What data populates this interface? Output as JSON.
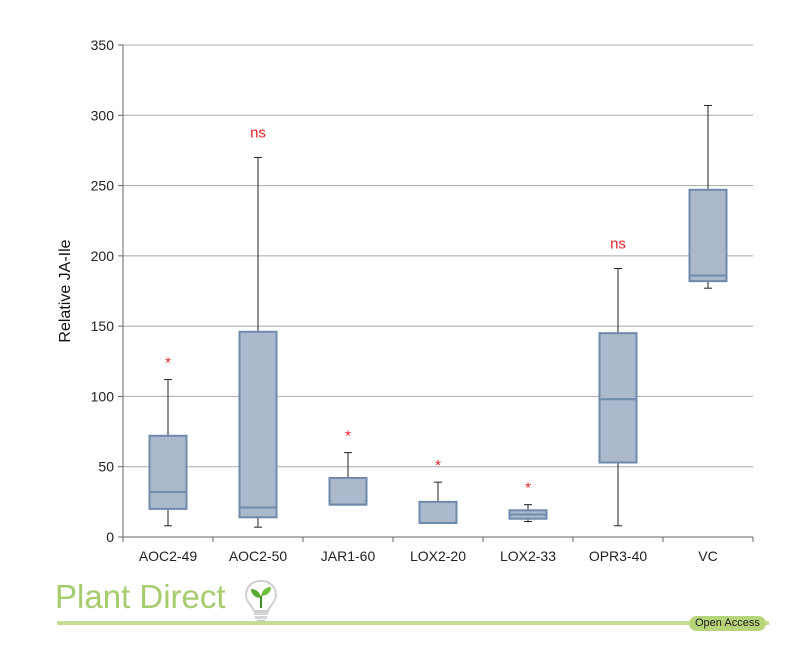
{
  "chart_data": {
    "type": "box",
    "ylabel": "Relative JA-Ile",
    "ylim": [
      0,
      350
    ],
    "yticks": [
      0,
      50,
      100,
      150,
      200,
      250,
      300,
      350
    ],
    "grid": true,
    "categories": [
      "AOC2-49",
      "AOC2-50",
      "JAR1-60",
      "LOX2-20",
      "LOX2-33",
      "OPR3-40",
      "VC"
    ],
    "boxes": [
      {
        "label": "AOC2-49",
        "min": 8,
        "q1": 20,
        "median": 32,
        "q3": 72,
        "max": 112,
        "significance": "*"
      },
      {
        "label": "AOC2-50",
        "min": 7,
        "q1": 14,
        "median": 21,
        "q3": 146,
        "max": 270,
        "significance": "ns"
      },
      {
        "label": "JAR1-60",
        "min": 23,
        "q1": 23,
        "median": 23,
        "q3": 42,
        "max": 60,
        "significance": "*"
      },
      {
        "label": "LOX2-20",
        "min": 10,
        "q1": 10,
        "median": 10,
        "q3": 25,
        "max": 39,
        "significance": "*"
      },
      {
        "label": "LOX2-33",
        "min": 11,
        "q1": 13,
        "median": 16,
        "q3": 19,
        "max": 23,
        "significance": "*"
      },
      {
        "label": "OPR3-40",
        "min": 8,
        "q1": 53,
        "median": 98,
        "q3": 145,
        "max": 191,
        "significance": "ns"
      },
      {
        "label": "VC",
        "min": 177,
        "q1": 182,
        "median": 186,
        "q3": 247,
        "max": 307,
        "significance": ""
      }
    ],
    "colors": {
      "box_fill": "#aab9cc",
      "box_stroke": "#6f8aab",
      "whisker": "#222222",
      "grid": "#a8a8a8",
      "significance": "#e8232a"
    }
  },
  "footer": {
    "brand": "Plant Direct",
    "badge": "Open Access",
    "colors": {
      "brand": "#a6cc6e",
      "rule": "#c6dc95",
      "badge": "#b8d47a"
    }
  }
}
